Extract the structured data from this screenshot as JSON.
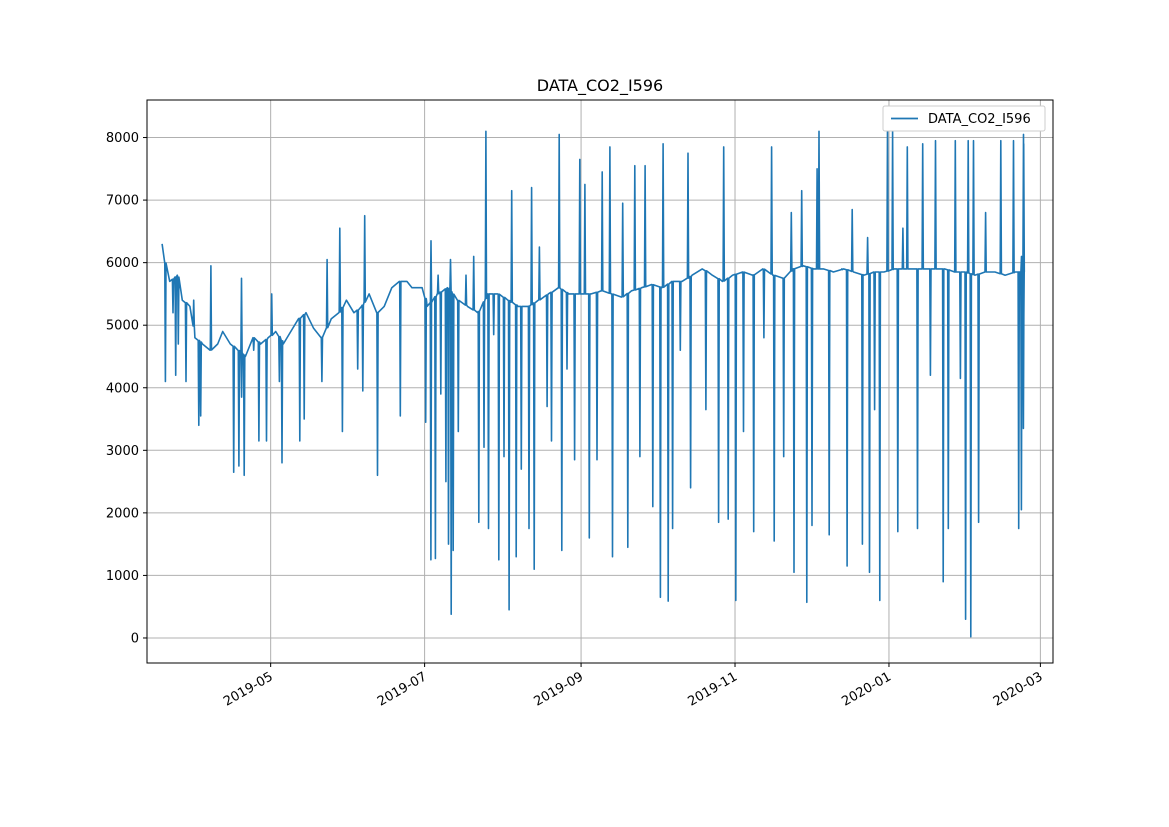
{
  "chart_data": {
    "type": "line",
    "title": "DATA_CO2_I596",
    "xlabel": "",
    "ylabel": "",
    "grid": true,
    "legend_position": "top-right",
    "x_axis": {
      "kind": "date",
      "range": [
        "2019-03-13",
        "2020-03-06"
      ],
      "ticks": [
        "2019-05-01",
        "2019-07-01",
        "2019-09-01",
        "2019-11-01",
        "2020-01-01",
        "2020-03-01"
      ],
      "tick_labels": [
        "2019-05",
        "2019-07",
        "2019-09",
        "2019-11",
        "2020-01",
        "2020-03"
      ]
    },
    "y_axis": {
      "range": [
        -400,
        8600
      ],
      "ticks": [
        0,
        1000,
        2000,
        3000,
        4000,
        5000,
        6000,
        7000,
        8000
      ],
      "tick_labels": [
        "0",
        "1000",
        "2000",
        "3000",
        "4000",
        "5000",
        "6000",
        "7000",
        "8000"
      ]
    },
    "series": [
      {
        "name": "DATA_CO2_I596",
        "color": "#1f77b4",
        "x_range": [
          "2019-03-19",
          "2020-02-23"
        ],
        "baseline": [
          [
            "2019-03-19",
            6300
          ],
          [
            "2019-03-20",
            6000
          ],
          [
            "2019-03-22",
            5700
          ],
          [
            "2019-03-25",
            5800
          ],
          [
            "2019-03-27",
            5400
          ],
          [
            "2019-03-30",
            5300
          ],
          [
            "2019-04-01",
            4800
          ],
          [
            "2019-04-04",
            4700
          ],
          [
            "2019-04-07",
            4600
          ],
          [
            "2019-04-10",
            4700
          ],
          [
            "2019-04-12",
            4900
          ],
          [
            "2019-04-15",
            4700
          ],
          [
            "2019-04-18",
            4600
          ],
          [
            "2019-04-21",
            4500
          ],
          [
            "2019-04-24",
            4800
          ],
          [
            "2019-04-27",
            4700
          ],
          [
            "2019-04-30",
            4800
          ],
          [
            "2019-05-03",
            4900
          ],
          [
            "2019-05-06",
            4700
          ],
          [
            "2019-05-09",
            4900
          ],
          [
            "2019-05-12",
            5100
          ],
          [
            "2019-05-15",
            5200
          ],
          [
            "2019-05-18",
            4950
          ],
          [
            "2019-05-21",
            4800
          ],
          [
            "2019-05-25",
            5100
          ],
          [
            "2019-05-28",
            5200
          ],
          [
            "2019-05-31",
            5400
          ],
          [
            "2019-06-03",
            5200
          ],
          [
            "2019-06-06",
            5300
          ],
          [
            "2019-06-09",
            5500
          ],
          [
            "2019-06-12",
            5200
          ],
          [
            "2019-06-15",
            5300
          ],
          [
            "2019-06-18",
            5600
          ],
          [
            "2019-06-21",
            5700
          ],
          [
            "2019-06-24",
            5700
          ],
          [
            "2019-06-26",
            5600
          ],
          [
            "2019-06-30",
            5600
          ],
          [
            "2019-07-02",
            5300
          ],
          [
            "2019-07-06",
            5500
          ],
          [
            "2019-07-10",
            5600
          ],
          [
            "2019-07-14",
            5400
          ],
          [
            "2019-07-18",
            5300
          ],
          [
            "2019-07-22",
            5200
          ],
          [
            "2019-07-26",
            5500
          ],
          [
            "2019-07-30",
            5500
          ],
          [
            "2019-08-03",
            5400
          ],
          [
            "2019-08-07",
            5300
          ],
          [
            "2019-08-11",
            5300
          ],
          [
            "2019-08-15",
            5400
          ],
          [
            "2019-08-19",
            5500
          ],
          [
            "2019-08-23",
            5600
          ],
          [
            "2019-08-27",
            5500
          ],
          [
            "2019-09-01",
            5500
          ],
          [
            "2019-09-05",
            5500
          ],
          [
            "2019-09-09",
            5550
          ],
          [
            "2019-09-13",
            5500
          ],
          [
            "2019-09-17",
            5450
          ],
          [
            "2019-09-21",
            5550
          ],
          [
            "2019-09-25",
            5600
          ],
          [
            "2019-09-29",
            5650
          ],
          [
            "2019-10-03",
            5600
          ],
          [
            "2019-10-07",
            5700
          ],
          [
            "2019-10-11",
            5700
          ],
          [
            "2019-10-15",
            5800
          ],
          [
            "2019-10-19",
            5900
          ],
          [
            "2019-10-23",
            5800
          ],
          [
            "2019-10-27",
            5700
          ],
          [
            "2019-10-31",
            5800
          ],
          [
            "2019-11-04",
            5850
          ],
          [
            "2019-11-08",
            5800
          ],
          [
            "2019-11-12",
            5900
          ],
          [
            "2019-11-16",
            5800
          ],
          [
            "2019-11-20",
            5750
          ],
          [
            "2019-11-24",
            5900
          ],
          [
            "2019-11-28",
            5950
          ],
          [
            "2019-12-02",
            5900
          ],
          [
            "2019-12-06",
            5900
          ],
          [
            "2019-12-10",
            5850
          ],
          [
            "2019-12-14",
            5900
          ],
          [
            "2019-12-18",
            5850
          ],
          [
            "2019-12-22",
            5800
          ],
          [
            "2019-12-26",
            5850
          ],
          [
            "2019-12-30",
            5850
          ],
          [
            "2020-01-03",
            5900
          ],
          [
            "2020-01-07",
            5900
          ],
          [
            "2020-01-11",
            5900
          ],
          [
            "2020-01-15",
            5900
          ],
          [
            "2020-01-19",
            5900
          ],
          [
            "2020-01-23",
            5900
          ],
          [
            "2020-01-27",
            5850
          ],
          [
            "2020-01-31",
            5850
          ],
          [
            "2020-02-04",
            5800
          ],
          [
            "2020-02-08",
            5850
          ],
          [
            "2020-02-12",
            5850
          ],
          [
            "2020-02-16",
            5800
          ],
          [
            "2020-02-20",
            5850
          ],
          [
            "2020-02-23",
            5850
          ]
        ],
        "spikes": [
          [
            "2019-03-20",
            4100
          ],
          [
            "2019-03-23",
            5200
          ],
          [
            "2019-03-24",
            4200
          ],
          [
            "2019-03-25",
            4700
          ],
          [
            "2019-03-28",
            4100
          ],
          [
            "2019-03-31",
            5400
          ],
          [
            "2019-04-02",
            3400
          ],
          [
            "2019-04-03",
            3550
          ],
          [
            "2019-04-07",
            5950
          ],
          [
            "2019-04-16",
            2650
          ],
          [
            "2019-04-18",
            2750
          ],
          [
            "2019-04-19",
            5750
          ],
          [
            "2019-04-19",
            3850
          ],
          [
            "2019-04-20",
            2600
          ],
          [
            "2019-04-24",
            4600
          ],
          [
            "2019-04-26",
            3150
          ],
          [
            "2019-04-29",
            3150
          ],
          [
            "2019-05-01",
            5500
          ],
          [
            "2019-05-04",
            4100
          ],
          [
            "2019-05-05",
            2800
          ],
          [
            "2019-05-12",
            3150
          ],
          [
            "2019-05-14",
            3500
          ],
          [
            "2019-05-21",
            4100
          ],
          [
            "2019-05-23",
            6050
          ],
          [
            "2019-05-28",
            6550
          ],
          [
            "2019-05-29",
            3300
          ],
          [
            "2019-06-04",
            4300
          ],
          [
            "2019-06-06",
            3950
          ],
          [
            "2019-06-07",
            6750
          ],
          [
            "2019-06-12",
            2600
          ],
          [
            "2019-06-21",
            3550
          ],
          [
            "2019-07-01",
            4100
          ],
          [
            "2019-07-01",
            3450
          ],
          [
            "2019-07-03",
            1250
          ],
          [
            "2019-07-03",
            6350
          ],
          [
            "2019-07-05",
            1270
          ],
          [
            "2019-07-05",
            2700
          ],
          [
            "2019-07-06",
            5800
          ],
          [
            "2019-07-07",
            3900
          ],
          [
            "2019-07-09",
            2500
          ],
          [
            "2019-07-10",
            1500
          ],
          [
            "2019-07-11",
            380
          ],
          [
            "2019-07-11",
            6050
          ],
          [
            "2019-07-12",
            1400
          ],
          [
            "2019-07-14",
            3300
          ],
          [
            "2019-07-17",
            5800
          ],
          [
            "2019-07-20",
            6100
          ],
          [
            "2019-07-22",
            1850
          ],
          [
            "2019-07-24",
            3050
          ],
          [
            "2019-07-25",
            8100
          ],
          [
            "2019-07-26",
            1750
          ],
          [
            "2019-07-28",
            4850
          ],
          [
            "2019-07-30",
            1250
          ],
          [
            "2019-08-01",
            2900
          ],
          [
            "2019-08-03",
            450
          ],
          [
            "2019-08-04",
            7150
          ],
          [
            "2019-08-06",
            1300
          ],
          [
            "2019-08-08",
            2700
          ],
          [
            "2019-08-11",
            1750
          ],
          [
            "2019-08-12",
            7200
          ],
          [
            "2019-08-13",
            1100
          ],
          [
            "2019-08-15",
            6250
          ],
          [
            "2019-08-18",
            3700
          ],
          [
            "2019-08-20",
            3150
          ],
          [
            "2019-08-23",
            8050
          ],
          [
            "2019-08-24",
            1400
          ],
          [
            "2019-08-26",
            4300
          ],
          [
            "2019-08-29",
            2850
          ],
          [
            "2019-08-31",
            7650
          ],
          [
            "2019-09-02",
            7250
          ],
          [
            "2019-09-04",
            1600
          ],
          [
            "2019-09-07",
            2850
          ],
          [
            "2019-09-09",
            7450
          ],
          [
            "2019-09-12",
            7850
          ],
          [
            "2019-09-13",
            1300
          ],
          [
            "2019-09-17",
            6950
          ],
          [
            "2019-09-19",
            1450
          ],
          [
            "2019-09-22",
            7550
          ],
          [
            "2019-09-24",
            2900
          ],
          [
            "2019-09-26",
            7550
          ],
          [
            "2019-09-29",
            2100
          ],
          [
            "2019-10-02",
            650
          ],
          [
            "2019-10-03",
            7900
          ],
          [
            "2019-10-05",
            590
          ],
          [
            "2019-10-07",
            1750
          ],
          [
            "2019-10-10",
            4600
          ],
          [
            "2019-10-13",
            7750
          ],
          [
            "2019-10-14",
            2400
          ],
          [
            "2019-10-20",
            3650
          ],
          [
            "2019-10-25",
            1850
          ],
          [
            "2019-10-27",
            7850
          ],
          [
            "2019-10-29",
            1900
          ],
          [
            "2019-11-01",
            600
          ],
          [
            "2019-11-04",
            3300
          ],
          [
            "2019-11-08",
            1700
          ],
          [
            "2019-11-12",
            4800
          ],
          [
            "2019-11-15",
            7850
          ],
          [
            "2019-11-16",
            1550
          ],
          [
            "2019-11-20",
            2900
          ],
          [
            "2019-11-23",
            6800
          ],
          [
            "2019-11-24",
            1050
          ],
          [
            "2019-11-27",
            7150
          ],
          [
            "2019-11-29",
            570
          ],
          [
            "2019-12-01",
            1800
          ],
          [
            "2019-12-03",
            7500
          ],
          [
            "2019-12-04",
            8100
          ],
          [
            "2019-12-08",
            1650
          ],
          [
            "2019-12-13",
            5900
          ],
          [
            "2019-12-15",
            1150
          ],
          [
            "2019-12-17",
            6850
          ],
          [
            "2019-12-21",
            1500
          ],
          [
            "2019-12-23",
            6400
          ],
          [
            "2019-12-24",
            1050
          ],
          [
            "2019-12-26",
            3650
          ],
          [
            "2019-12-28",
            600
          ],
          [
            "2019-12-31",
            8150
          ],
          [
            "2020-01-02",
            8100
          ],
          [
            "2020-01-04",
            1700
          ],
          [
            "2020-01-06",
            6550
          ],
          [
            "2020-01-08",
            7850
          ],
          [
            "2020-01-12",
            1750
          ],
          [
            "2020-01-14",
            7900
          ],
          [
            "2020-01-17",
            4200
          ],
          [
            "2020-01-19",
            7950
          ],
          [
            "2020-01-22",
            900
          ],
          [
            "2020-01-24",
            1750
          ],
          [
            "2020-01-27",
            7950
          ],
          [
            "2020-01-29",
            4150
          ],
          [
            "2020-01-31",
            300
          ],
          [
            "2020-02-01",
            7950
          ],
          [
            "2020-02-02",
            20
          ],
          [
            "2020-02-03",
            7950
          ],
          [
            "2020-02-05",
            1850
          ],
          [
            "2020-02-08",
            6800
          ],
          [
            "2020-02-14",
            7950
          ],
          [
            "2020-02-19",
            7950
          ],
          [
            "2020-02-21",
            1750
          ],
          [
            "2020-02-21",
            5300
          ],
          [
            "2020-02-22",
            2050
          ],
          [
            "2020-02-22",
            6100
          ],
          [
            "2020-02-23",
            3350
          ],
          [
            "2020-02-23",
            8050
          ],
          [
            "2020-02-23",
            4700
          ],
          [
            "2020-02-23",
            7900
          ]
        ]
      }
    ]
  }
}
